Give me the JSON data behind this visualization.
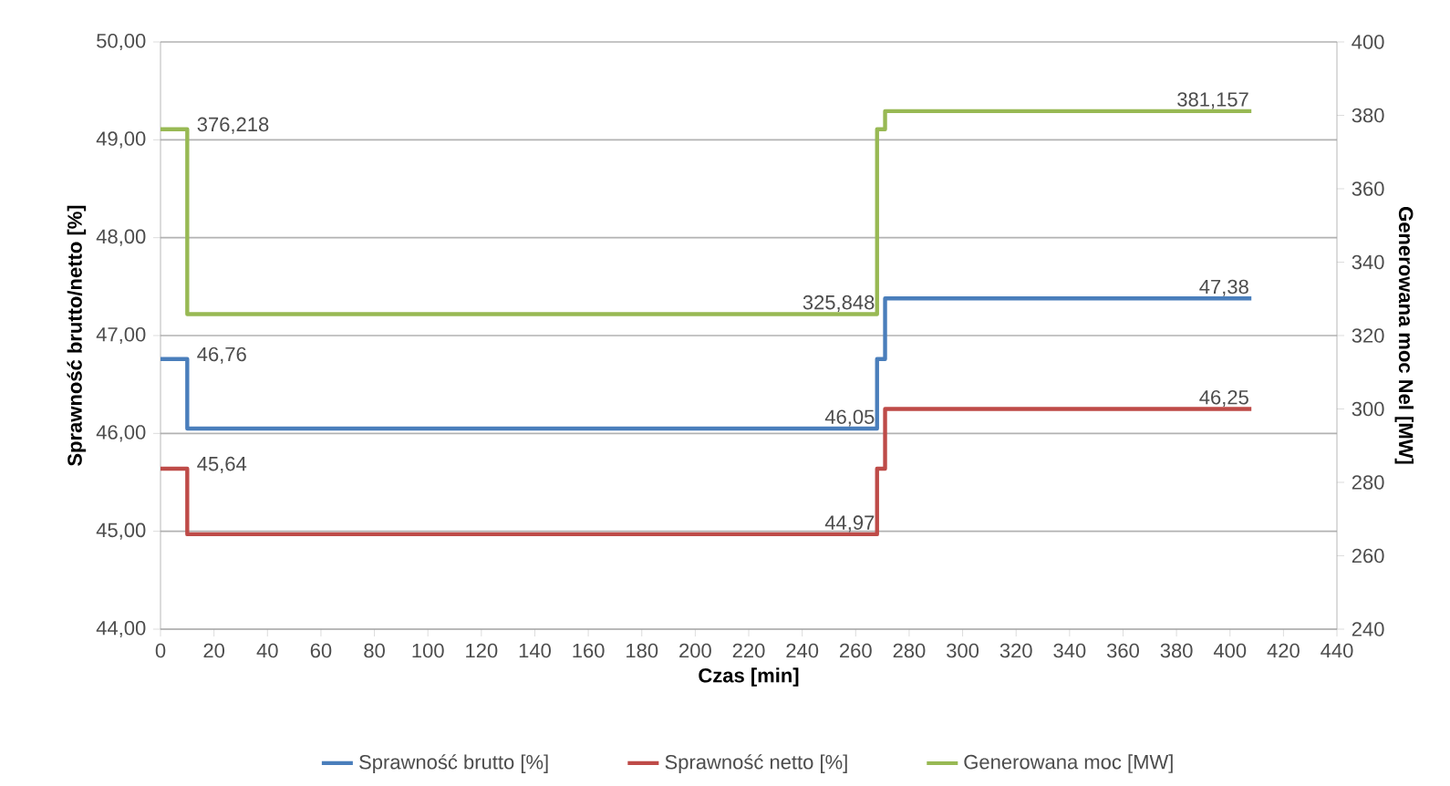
{
  "chart_data": {
    "type": "step",
    "xlabel": "Czas [min]",
    "ylabel": "Sprawność brutto/netto [%]",
    "y2label": "Generowana moc Nel [MW]",
    "x": [
      0,
      10,
      268,
      271,
      408
    ],
    "series": [
      {
        "name": "Sprawność brutto [%]",
        "color": "#4a7ebb",
        "values": [
          46.76,
          46.05,
          46.76,
          47.38,
          47.38
        ]
      },
      {
        "name": "Sprawność netto [%]",
        "color": "#be4b48",
        "values": [
          45.64,
          44.97,
          45.64,
          46.25,
          46.25
        ]
      },
      {
        "name": "Generowana moc [MW]",
        "color": "#98b954",
        "axis": "y2",
        "values": [
          376.218,
          325.848,
          376.218,
          381.157,
          381.157
        ]
      }
    ],
    "xlim": [
      0,
      440
    ],
    "xticks": [
      0,
      20,
      40,
      60,
      80,
      100,
      120,
      140,
      160,
      180,
      200,
      220,
      240,
      260,
      280,
      300,
      320,
      340,
      360,
      380,
      400,
      420,
      440
    ],
    "ylim": [
      44,
      50
    ],
    "yticks": [
      {
        "value": 44,
        "label": "44,00"
      },
      {
        "value": 45,
        "label": "45,00"
      },
      {
        "value": 46,
        "label": "46,00"
      },
      {
        "value": 47,
        "label": "47,00"
      },
      {
        "value": 48,
        "label": "48,00"
      },
      {
        "value": 49,
        "label": "49,00"
      },
      {
        "value": 50,
        "label": "50,00"
      }
    ],
    "y2lim": [
      240,
      400
    ],
    "y2ticks": [
      240,
      260,
      280,
      300,
      320,
      340,
      360,
      380,
      400
    ],
    "grid": "y",
    "legend": "bottom",
    "line_style": "solid",
    "marker": "none",
    "annotations": [
      "376,218",
      {
        "text": "46,76",
        "x": 10,
        "y": 46.76
      },
      {
        "text": "45,64",
        "x": 10,
        "y": 45.64
      },
      "325,848",
      {
        "text": "46,05",
        "x": 268,
        "y": 46.05
      },
      {
        "text": "44,97",
        "x": 268,
        "y": 44.97
      },
      "381,157",
      {
        "text": "47,38",
        "x": 408,
        "y": 47.38
      },
      {
        "text": "46,25",
        "x": 408,
        "y": 46.25
      }
    ]
  }
}
